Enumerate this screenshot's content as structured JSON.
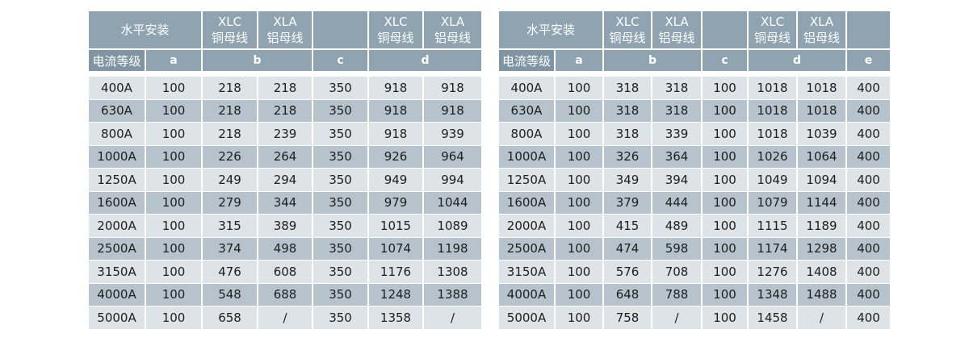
{
  "header": {
    "install": "水平安装",
    "xlc": "XLC",
    "xlc_sub": "铜母线",
    "xla": "XLA",
    "xla_sub": "铝母线",
    "level": "电流等级",
    "a": "a",
    "b": "b",
    "c": "c",
    "d": "d",
    "e": "e"
  },
  "left_table": {
    "rows": [
      [
        "400A",
        "100",
        "218",
        "218",
        "350",
        "918",
        "918"
      ],
      [
        "630A",
        "100",
        "218",
        "218",
        "350",
        "918",
        "918"
      ],
      [
        "800A",
        "100",
        "218",
        "239",
        "350",
        "918",
        "939"
      ],
      [
        "1000A",
        "100",
        "226",
        "264",
        "350",
        "926",
        "964"
      ],
      [
        "1250A",
        "100",
        "249",
        "294",
        "350",
        "949",
        "994"
      ],
      [
        "1600A",
        "100",
        "279",
        "344",
        "350",
        "979",
        "1044"
      ],
      [
        "2000A",
        "100",
        "315",
        "389",
        "350",
        "1015",
        "1089"
      ],
      [
        "2500A",
        "100",
        "374",
        "498",
        "350",
        "1074",
        "1198"
      ],
      [
        "3150A",
        "100",
        "476",
        "608",
        "350",
        "1176",
        "1308"
      ],
      [
        "4000A",
        "100",
        "548",
        "688",
        "350",
        "1248",
        "1388"
      ],
      [
        "5000A",
        "100",
        "658",
        "/",
        "350",
        "1358",
        "/"
      ]
    ]
  },
  "right_table": {
    "rows": [
      [
        "400A",
        "100",
        "318",
        "318",
        "100",
        "1018",
        "1018",
        "400"
      ],
      [
        "630A",
        "100",
        "318",
        "318",
        "100",
        "1018",
        "1018",
        "400"
      ],
      [
        "800A",
        "100",
        "318",
        "339",
        "100",
        "1018",
        "1039",
        "400"
      ],
      [
        "1000A",
        "100",
        "326",
        "364",
        "100",
        "1026",
        "1064",
        "400"
      ],
      [
        "1250A",
        "100",
        "349",
        "394",
        "100",
        "1049",
        "1094",
        "400"
      ],
      [
        "1600A",
        "100",
        "379",
        "444",
        "100",
        "1079",
        "1144",
        "400"
      ],
      [
        "2000A",
        "100",
        "415",
        "489",
        "100",
        "1115",
        "1189",
        "400"
      ],
      [
        "2500A",
        "100",
        "474",
        "598",
        "100",
        "1174",
        "1298",
        "400"
      ],
      [
        "3150A",
        "100",
        "576",
        "708",
        "100",
        "1276",
        "1408",
        "400"
      ],
      [
        "4000A",
        "100",
        "648",
        "788",
        "100",
        "1348",
        "1488",
        "400"
      ],
      [
        "5000A",
        "100",
        "758",
        "/",
        "100",
        "1458",
        "/",
        "400"
      ]
    ]
  }
}
